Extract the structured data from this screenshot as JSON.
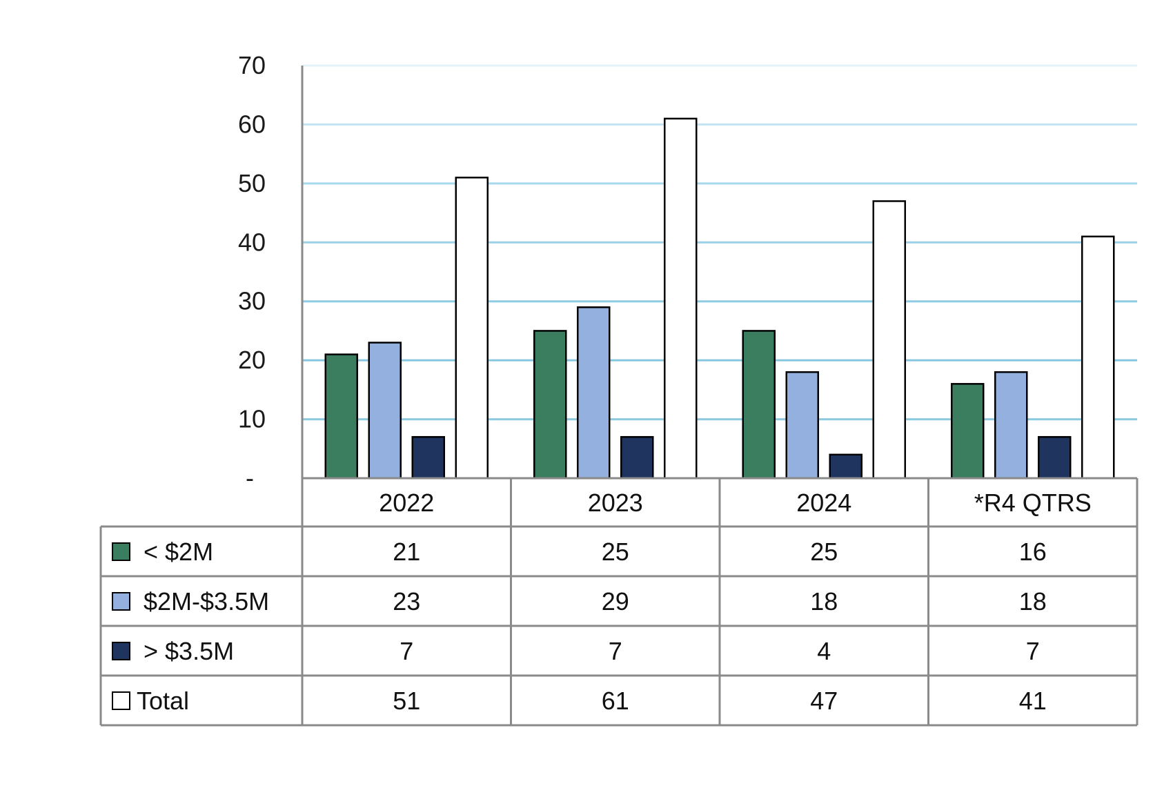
{
  "chart_data": {
    "type": "bar",
    "title": "",
    "xlabel": "",
    "ylabel": "",
    "ylim": [
      0,
      70
    ],
    "yticks": [
      0,
      10,
      20,
      30,
      40,
      50,
      60,
      70
    ],
    "ytick_labels": [
      "-",
      "10",
      "20",
      "30",
      "40",
      "50",
      "60",
      "70"
    ],
    "grid": true,
    "legend": "data-table",
    "categories": [
      "2022",
      "2023",
      "2024",
      "*R4 QTRS"
    ],
    "series": [
      {
        "name": "< $2M",
        "color": "#3a7d5f",
        "values": [
          21,
          25,
          25,
          16
        ]
      },
      {
        "name": "$2M-$3.5M",
        "color": "#94b0de",
        "values": [
          23,
          29,
          18,
          18
        ]
      },
      {
        "name": "> $3.5M",
        "color": "#1f3560",
        "values": [
          7,
          7,
          4,
          7
        ]
      },
      {
        "name": "Total",
        "color": "#ffffff",
        "values": [
          51,
          61,
          47,
          41
        ]
      }
    ]
  }
}
